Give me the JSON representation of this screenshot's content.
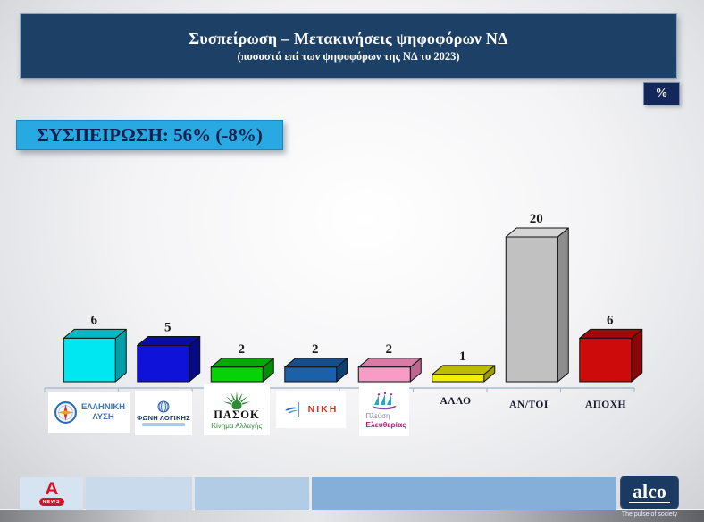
{
  "header": {
    "title": "Συσπείρωση – Μετακινήσεις ψηφοφόρων ΝΔ",
    "subtitle": "(ποσοστά επί των ψηφοφόρων της ΝΔ το 2023)"
  },
  "unit_badge": "%",
  "cohesion_label": "ΣΥΣΠΕΙΡΩΣΗ: 56% (-8%)",
  "chart_data": {
    "type": "bar",
    "style": "3d",
    "title": "Συσπείρωση – Μετακινήσεις ψηφοφόρων ΝΔ",
    "subtitle": "(ποσοστά επί των ψηφοφόρων της ΝΔ το 2023)",
    "unit": "%",
    "categories": [
      "ΕΛΛΗΝΙΚΗ ΛΥΣΗ",
      "ΦΩΝΗ ΛΟΓΙΚΗΣ",
      "ΠΑΣΟΚ – Κίνημα Αλλαγής",
      "ΝΙΚΗ",
      "Πλεύση Ελευθερίας",
      "ΑΛΛΟ",
      "ΑΝ/ΤΟΙ",
      "ΑΠΟΧΗ"
    ],
    "values": [
      6,
      5,
      2,
      2,
      2,
      1,
      20,
      6
    ],
    "value_labels": true,
    "grid": false,
    "legend": "none",
    "ylim": [
      0,
      22
    ],
    "bar_colors": [
      {
        "front": "#00e7f2",
        "top": "#00b7c4",
        "side": "#009ea8"
      },
      {
        "front": "#0f12d9",
        "top": "#0a0ca6",
        "side": "#070985"
      },
      {
        "front": "#06d306",
        "top": "#05a805",
        "side": "#048c04"
      },
      {
        "front": "#1b61a9",
        "top": "#154e88",
        "side": "#104070"
      },
      {
        "front": "#f89cc6",
        "top": "#d97ba6",
        "side": "#bc6690"
      },
      {
        "front": "#f0f000",
        "top": "#bdbd00",
        "side": "#9e9e00"
      },
      {
        "front": "#c1c1c1",
        "top": "#d6d6d6",
        "side": "#8e8e8e"
      },
      {
        "front": "#ce0b0b",
        "top": "#a30808",
        "side": "#8a0707"
      }
    ],
    "axis_color": "#a8bccb",
    "label_color": "#1a1a1a"
  },
  "logos": {
    "hellenic_solution": {
      "line1": "ΕΛΛΗΝΙΚΗ",
      "line2": "ΛΥΣΗ"
    },
    "foni_logikis": {
      "name": "ΦΩΝΗ ΛΟΓΙΚΗΣ"
    },
    "pasok": {
      "name": "ΠΑΣΟΚ",
      "sub": "Κίνημα Αλλαγής"
    },
    "niki": {
      "name": "ΝΙΚΗ"
    },
    "plefsi": {
      "line1": "Πλεύση",
      "line2": "Ελευθερίας"
    },
    "allo": "ΑΛΛΟ",
    "antoi": "ΑΝ/ΤΟΙ",
    "apoxi": "ΑΠΟΧΗ"
  },
  "footer": {
    "alpha_news": "NEWS",
    "alco": "alco",
    "alco_tagline": "The pulse of society"
  },
  "colors": {
    "header_bg": "#1d4066",
    "cohesion_bg": "#29a9e2",
    "badge_bg": "#14275b"
  }
}
